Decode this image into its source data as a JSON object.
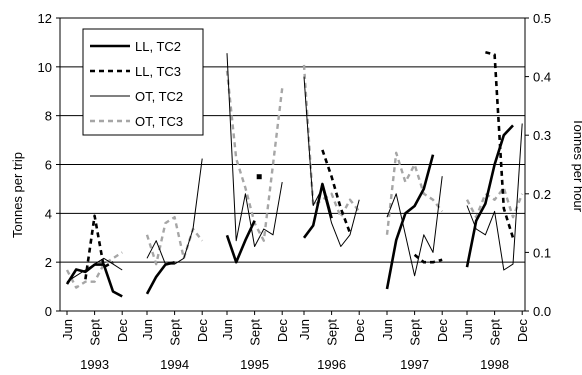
{
  "chart_data": {
    "type": "line",
    "title": "",
    "ylabel": "Tonnes per trip",
    "y2label": "Tonnes per hour",
    "ylim": [
      0,
      12
    ],
    "y2lim": [
      0,
      0.5
    ],
    "yticks": [
      0,
      2,
      4,
      6,
      8,
      10,
      12
    ],
    "y2ticks": [
      "0.0",
      "0.1",
      "0.2",
      "0.3",
      "0.4",
      "0.5"
    ],
    "gridlines": "horizontal",
    "legend_position": "top-left",
    "x_month_labels": [
      "Jun",
      "Sept",
      "Dec"
    ],
    "years": [
      "1993",
      "1994",
      "1995",
      "1996",
      "1997",
      "1998"
    ],
    "series": [
      {
        "name": "LL, TC2",
        "axis": "left",
        "style": "thick-solid",
        "segments": [
          {
            "year": "1993",
            "months": [
              6,
              7,
              8,
              9,
              10,
              11,
              12
            ],
            "values": [
              1.1,
              1.7,
              1.6,
              1.9,
              1.9,
              0.8,
              0.6
            ]
          },
          {
            "year": "1994",
            "months": [
              6,
              7,
              8,
              9
            ],
            "values": [
              0.7,
              1.4,
              1.9,
              2.0
            ]
          },
          {
            "year": "1995",
            "months": [
              6,
              7,
              8,
              9
            ],
            "values": [
              3.1,
              2.0,
              2.9,
              3.7
            ]
          },
          {
            "year": "1996",
            "months": [
              6,
              7,
              8,
              9
            ],
            "values": [
              3.0,
              3.5,
              5.2,
              3.8
            ]
          },
          {
            "year": "1997",
            "months": [
              6,
              7,
              8,
              9,
              10,
              11
            ],
            "values": [
              0.9,
              2.9,
              4.0,
              4.3,
              5.0,
              6.4
            ]
          },
          {
            "year": "1998",
            "months": [
              6,
              7,
              8,
              9,
              10,
              11
            ],
            "values": [
              1.8,
              3.7,
              4.4,
              6.0,
              7.2,
              7.6
            ]
          }
        ]
      },
      {
        "name": "LL, TC3",
        "axis": "left",
        "style": "thick-dashed",
        "segments": [
          {
            "year": "1993",
            "months": [
              8,
              9,
              10,
              11
            ],
            "values": [
              1.3,
              3.9,
              1.8,
              2.0
            ]
          },
          {
            "year": "1995",
            "months": [
              9.5
            ],
            "values": [
              5.5
            ]
          },
          {
            "year": "1996",
            "months": [
              8,
              9,
              10,
              11
            ],
            "values": [
              6.6,
              5.5,
              4.2,
              3.2
            ]
          },
          {
            "year": "1997",
            "months": [
              9,
              10,
              11,
              12
            ],
            "values": [
              2.3,
              2.0,
              2.0,
              2.1
            ]
          },
          {
            "year": "1998",
            "months": [
              8,
              9,
              10,
              11
            ],
            "values": [
              10.6,
              10.5,
              4.2,
              3.0
            ]
          }
        ]
      },
      {
        "name": "OT, TC2",
        "axis": "right",
        "style": "thin-solid",
        "segments": [
          {
            "year": "1993",
            "months": [
              6,
              7,
              8,
              9,
              10,
              11,
              12
            ],
            "values": [
              0.05,
              0.06,
              0.07,
              0.08,
              0.09,
              0.08,
              0.07
            ]
          },
          {
            "year": "1994",
            "months": [
              6,
              7,
              8,
              9,
              10,
              11,
              12
            ],
            "values": [
              0.09,
              0.12,
              0.08,
              0.08,
              0.09,
              0.14,
              0.26
            ]
          },
          {
            "year": "1995",
            "months": [
              6,
              7,
              8,
              9,
              10,
              11,
              12
            ],
            "values": [
              0.44,
              0.12,
              0.2,
              0.11,
              0.14,
              0.13,
              0.22
            ]
          },
          {
            "year": "1996",
            "months": [
              6,
              7,
              8,
              9,
              10,
              11,
              12
            ],
            "values": [
              0.4,
              0.18,
              0.21,
              0.15,
              0.11,
              0.13,
              0.19
            ]
          },
          {
            "year": "1997",
            "months": [
              6,
              7,
              8,
              9,
              10,
              11,
              12
            ],
            "values": [
              0.16,
              0.2,
              0.13,
              0.06,
              0.13,
              0.1,
              0.23
            ]
          },
          {
            "year": "1998",
            "months": [
              6,
              7,
              8,
              9,
              10,
              11,
              12
            ],
            "values": [
              0.18,
              0.14,
              0.13,
              0.17,
              0.07,
              0.08,
              0.32
            ]
          }
        ]
      },
      {
        "name": "OT, TC3",
        "axis": "right",
        "style": "thin-dashed-gray",
        "segments": [
          {
            "year": "1993",
            "months": [
              6,
              7,
              8,
              9,
              10,
              11,
              12
            ],
            "values": [
              0.07,
              0.04,
              0.05,
              0.05,
              0.08,
              0.09,
              0.1
            ]
          },
          {
            "year": "1994",
            "months": [
              6,
              7,
              8,
              9,
              10,
              11,
              12
            ],
            "values": [
              0.13,
              0.08,
              0.15,
              0.16,
              0.09,
              0.14,
              0.12
            ]
          },
          {
            "year": "1995",
            "months": [
              6,
              7,
              8,
              9,
              10,
              11,
              12
            ],
            "values": [
              0.41,
              0.26,
              0.21,
              0.15,
              0.12,
              0.25,
              0.38
            ]
          },
          {
            "year": "1996",
            "months": [
              6,
              7,
              8,
              9,
              10,
              11,
              12
            ],
            "values": [
              0.42,
              0.18,
              0.19,
              0.2,
              0.16,
              0.19,
              0.17
            ]
          },
          {
            "year": "1997",
            "months": [
              6,
              7,
              8,
              9,
              10,
              11,
              12
            ],
            "values": [
              0.13,
              0.27,
              0.22,
              0.25,
              0.2,
              0.19,
              0.17
            ]
          },
          {
            "year": "1998",
            "months": [
              6,
              7,
              8,
              9,
              10,
              11,
              12
            ],
            "values": [
              0.19,
              0.16,
              0.2,
              0.19,
              0.21,
              0.16,
              0.2
            ]
          }
        ]
      }
    ]
  }
}
